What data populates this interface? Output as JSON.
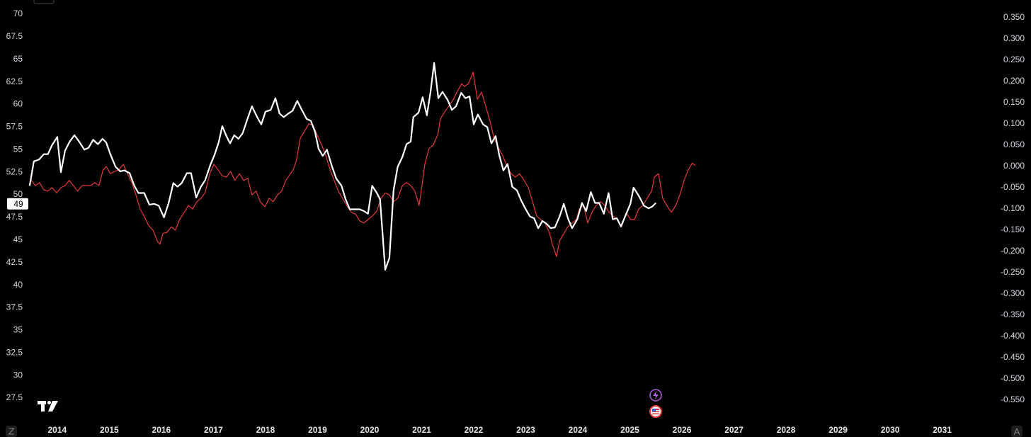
{
  "chart_data": {
    "type": "line",
    "xlim": [
      2012.9,
      2032.08
    ],
    "xticks": [
      2014,
      2015,
      2016,
      2017,
      2018,
      2019,
      2020,
      2021,
      2022,
      2023,
      2024,
      2025,
      2026,
      2027,
      2028,
      2029,
      2030,
      2031
    ],
    "ylim": [
      27.5,
      70
    ],
    "yticks": [
      27.5,
      30,
      32.5,
      35,
      37.5,
      40,
      42.5,
      45,
      47.5,
      50,
      52.5,
      55,
      57.5,
      60,
      62.5,
      65,
      67.5,
      70
    ],
    "y2lim": [
      -0.55,
      0.35
    ],
    "y2ticks": [
      {
        "value": 0.35,
        "label": "0.350"
      },
      {
        "value": 0.3,
        "label": "0.300"
      },
      {
        "value": 0.25,
        "label": "0.250"
      },
      {
        "value": 0.2,
        "label": "0.200"
      },
      {
        "value": 0.15,
        "label": "0.150"
      },
      {
        "value": 0.1,
        "label": "0.100"
      },
      {
        "value": 0.05,
        "label": "0.050"
      },
      {
        "value": 0,
        "label": "0.000"
      },
      {
        "value": -0.05,
        "label": "-0.050"
      },
      {
        "value": -0.1,
        "label": "-0.100"
      },
      {
        "value": -0.15,
        "label": "-0.150"
      },
      {
        "value": -0.2,
        "label": "-0.200"
      },
      {
        "value": -0.25,
        "label": "-0.250"
      },
      {
        "value": -0.3,
        "label": "-0.300"
      },
      {
        "value": -0.35,
        "label": "-0.350"
      },
      {
        "value": -0.4,
        "label": "-0.400"
      },
      {
        "value": -0.45,
        "label": "-0.450"
      },
      {
        "value": -0.5,
        "label": "-0.500"
      },
      {
        "value": -0.55,
        "label": "-0.550"
      }
    ],
    "grid": false,
    "series": [
      {
        "color": "#e5383b",
        "axis": "y2",
        "x": [
          2013.5,
          2013.58,
          2013.66,
          2013.74,
          2013.82,
          2013.9,
          2013.99,
          2014.07,
          2014.15,
          2014.23,
          2014.31,
          2014.39,
          2014.48,
          2014.56,
          2014.64,
          2014.72,
          2014.8,
          2014.88,
          2014.94,
          2015.02,
          2015.1,
          2015.18,
          2015.27,
          2015.35,
          2015.43,
          2015.51,
          2015.59,
          2015.67,
          2015.75,
          2015.84,
          2015.92,
          2015.97,
          2016.03,
          2016.11,
          2016.19,
          2016.27,
          2016.35,
          2016.44,
          2016.52,
          2016.6,
          2016.68,
          2016.76,
          2016.84,
          2016.93,
          2017.01,
          2017.09,
          2017.17,
          2017.25,
          2017.33,
          2017.41,
          2017.5,
          2017.58,
          2017.66,
          2017.74,
          2017.82,
          2017.9,
          2017.99,
          2018.07,
          2018.15,
          2018.23,
          2018.31,
          2018.39,
          2018.48,
          2018.53,
          2018.59,
          2018.67,
          2018.75,
          2018.83,
          2018.91,
          2018.99,
          2019.08,
          2019.16,
          2019.24,
          2019.32,
          2019.4,
          2019.48,
          2019.56,
          2019.65,
          2019.73,
          2019.81,
          2019.89,
          2019.97,
          2020.05,
          2020.14,
          2020.22,
          2020.3,
          2020.38,
          2020.46,
          2020.54,
          2020.63,
          2020.71,
          2020.79,
          2020.87,
          2020.95,
          2021.01,
          2021.06,
          2021.14,
          2021.22,
          2021.31,
          2021.36,
          2021.44,
          2021.52,
          2021.61,
          2021.69,
          2021.77,
          2021.82,
          2021.9,
          2021.99,
          2022.07,
          2022.15,
          2022.23,
          2022.31,
          2022.39,
          2022.48,
          2022.56,
          2022.64,
          2022.72,
          2022.8,
          2022.88,
          2022.97,
          2023.05,
          2023.13,
          2023.21,
          2023.29,
          2023.37,
          2023.46,
          2023.51,
          2023.59,
          2023.65,
          2023.73,
          2023.81,
          2023.89,
          2023.97,
          2024.03,
          2024.11,
          2024.19,
          2024.27,
          2024.35,
          2024.44,
          2024.52,
          2024.6,
          2024.68,
          2024.76,
          2024.84,
          2024.93,
          2025.01,
          2025.09,
          2025.17,
          2025.25,
          2025.33,
          2025.42,
          2025.47,
          2025.55,
          2025.63,
          2025.71,
          2025.8,
          2025.88,
          2025.96,
          2026.04,
          2026.12,
          2026.2,
          2026.26
        ],
        "values": [
          -0.033,
          -0.045,
          -0.038,
          -0.055,
          -0.058,
          -0.05,
          -0.062,
          -0.05,
          -0.045,
          -0.033,
          -0.045,
          -0.058,
          -0.045,
          -0.045,
          -0.045,
          -0.038,
          -0.045,
          -0.008,
          0,
          -0.017,
          -0.012,
          -0.008,
          0.005,
          -0.017,
          -0.038,
          -0.067,
          -0.1,
          -0.117,
          -0.138,
          -0.15,
          -0.175,
          -0.183,
          -0.158,
          -0.155,
          -0.142,
          -0.15,
          -0.125,
          -0.108,
          -0.092,
          -0.1,
          -0.083,
          -0.075,
          -0.062,
          -0.017,
          0.005,
          -0.008,
          -0.022,
          -0.025,
          -0.012,
          -0.033,
          -0.017,
          -0.033,
          -0.028,
          -0.067,
          -0.058,
          -0.083,
          -0.095,
          -0.075,
          -0.083,
          -0.067,
          -0.058,
          -0.033,
          -0.017,
          -0.008,
          0.012,
          0.067,
          0.083,
          0.1,
          0.098,
          0.075,
          0.05,
          0.025,
          -0.008,
          -0.033,
          -0.058,
          -0.075,
          -0.092,
          -0.108,
          -0.112,
          -0.128,
          -0.133,
          -0.125,
          -0.117,
          -0.105,
          -0.075,
          -0.062,
          -0.067,
          -0.083,
          -0.075,
          -0.045,
          -0.038,
          -0.045,
          -0.058,
          -0.092,
          -0.042,
          0.005,
          0.042,
          0.05,
          0.075,
          0.112,
          0.128,
          0.142,
          0.158,
          0.178,
          0.195,
          0.188,
          0.195,
          0.222,
          0.158,
          0.175,
          0.142,
          0.108,
          0.067,
          0.042,
          0.025,
          0,
          -0.017,
          -0.025,
          -0.017,
          -0.033,
          -0.05,
          -0.083,
          -0.117,
          -0.125,
          -0.133,
          -0.158,
          -0.183,
          -0.212,
          -0.175,
          -0.158,
          -0.142,
          -0.133,
          -0.125,
          -0.1,
          -0.092,
          -0.133,
          -0.108,
          -0.092,
          -0.083,
          -0.092,
          -0.108,
          -0.117,
          -0.125,
          -0.142,
          -0.108,
          -0.125,
          -0.125,
          -0.1,
          -0.092,
          -0.075,
          -0.058,
          -0.025,
          -0.017,
          -0.075,
          -0.092,
          -0.108,
          -0.092,
          -0.067,
          -0.033,
          -0.008,
          0.008,
          0.002
        ]
      },
      {
        "color": "#ffffff",
        "axis": "y",
        "last_value_label": 49,
        "x": [
          2013.47,
          2013.55,
          2013.65,
          2013.74,
          2013.82,
          2013.9,
          2014.0,
          2014.07,
          2014.15,
          2014.24,
          2014.33,
          2014.42,
          2014.52,
          2014.6,
          2014.69,
          2014.78,
          2014.87,
          2014.94,
          2015.02,
          2015.12,
          2015.21,
          2015.29,
          2015.39,
          2015.48,
          2015.56,
          2015.67,
          2015.77,
          2015.86,
          2015.95,
          2016.05,
          2016.14,
          2016.23,
          2016.31,
          2016.39,
          2016.49,
          2016.57,
          2016.67,
          2016.76,
          2016.84,
          2016.94,
          2017.02,
          2017.1,
          2017.17,
          2017.25,
          2017.32,
          2017.4,
          2017.48,
          2017.56,
          2017.66,
          2017.74,
          2017.84,
          2017.92,
          2018.0,
          2018.1,
          2018.19,
          2018.27,
          2018.35,
          2018.44,
          2018.52,
          2018.61,
          2018.69,
          2018.79,
          2018.87,
          2018.95,
          2019.02,
          2019.1,
          2019.18,
          2019.28,
          2019.36,
          2019.46,
          2019.54,
          2019.62,
          2019.7,
          2019.81,
          2019.89,
          2019.97,
          2020.05,
          2020.14,
          2020.2,
          2020.3,
          2020.38,
          2020.46,
          2020.54,
          2020.63,
          2020.71,
          2020.79,
          2020.84,
          2020.94,
          2021.02,
          2021.1,
          2021.17,
          2021.24,
          2021.32,
          2021.4,
          2021.5,
          2021.58,
          2021.66,
          2021.76,
          2021.84,
          2021.92,
          2022.0,
          2022.08,
          2022.18,
          2022.26,
          2022.34,
          2022.42,
          2022.49,
          2022.57,
          2022.65,
          2022.74,
          2022.83,
          2022.91,
          2022.99,
          2023.08,
          2023.16,
          2023.24,
          2023.32,
          2023.4,
          2023.48,
          2023.56,
          2023.65,
          2023.73,
          2023.81,
          2023.89,
          2023.99,
          2024.08,
          2024.16,
          2024.25,
          2024.33,
          2024.41,
          2024.5,
          2024.59,
          2024.67,
          2024.75,
          2024.83,
          2024.93,
          2025.01,
          2025.07,
          2025.17,
          2025.27,
          2025.36,
          2025.43,
          2025.5
        ],
        "values": [
          51.0,
          53.7,
          53.9,
          54.5,
          54.5,
          55.5,
          56.4,
          52.5,
          54.9,
          55.9,
          56.6,
          55.9,
          55.0,
          55.2,
          56.1,
          55.6,
          56.2,
          55.8,
          54.5,
          53.1,
          52.6,
          52.7,
          52.4,
          51.0,
          50.2,
          50.2,
          48.9,
          49.0,
          48.8,
          47.5,
          49.1,
          51.3,
          50.9,
          51.3,
          52.4,
          52.4,
          49.7,
          50.9,
          51.6,
          53.3,
          54.4,
          55.8,
          57.6,
          56.5,
          55.7,
          56.6,
          56.2,
          56.8,
          58.5,
          59.8,
          58.6,
          57.8,
          59.2,
          59.4,
          60.7,
          59.0,
          58.6,
          59.0,
          59.3,
          60.4,
          59.5,
          58.4,
          58.2,
          57.0,
          55.1,
          54.3,
          55.0,
          53.1,
          51.8,
          51.0,
          49.5,
          48.4,
          48.4,
          48.4,
          48.2,
          47.9,
          51.0,
          50.2,
          49.5,
          41.7,
          43.0,
          50.5,
          53.1,
          54.2,
          55.6,
          55.9,
          58.6,
          59.1,
          60.8,
          58.8,
          61.4,
          64.6,
          60.7,
          61.4,
          60.5,
          59.4,
          59.8,
          61.3,
          60.7,
          60.9,
          57.8,
          58.9,
          57.8,
          57.5,
          55.7,
          56.5,
          54.4,
          52.7,
          53.4,
          50.9,
          50.5,
          49.4,
          48.5,
          47.6,
          47.4,
          46.3,
          47.1,
          46.8,
          46.3,
          46.4,
          47.6,
          49.0,
          47.4,
          46.3,
          47.3,
          49.1,
          48.2,
          50.3,
          49.1,
          49.1,
          47.9,
          50.2,
          47.3,
          47.4,
          46.5,
          47.9,
          49.0,
          50.8,
          49.9,
          48.8,
          48.5,
          48.7,
          49.1
        ]
      }
    ]
  }
}
